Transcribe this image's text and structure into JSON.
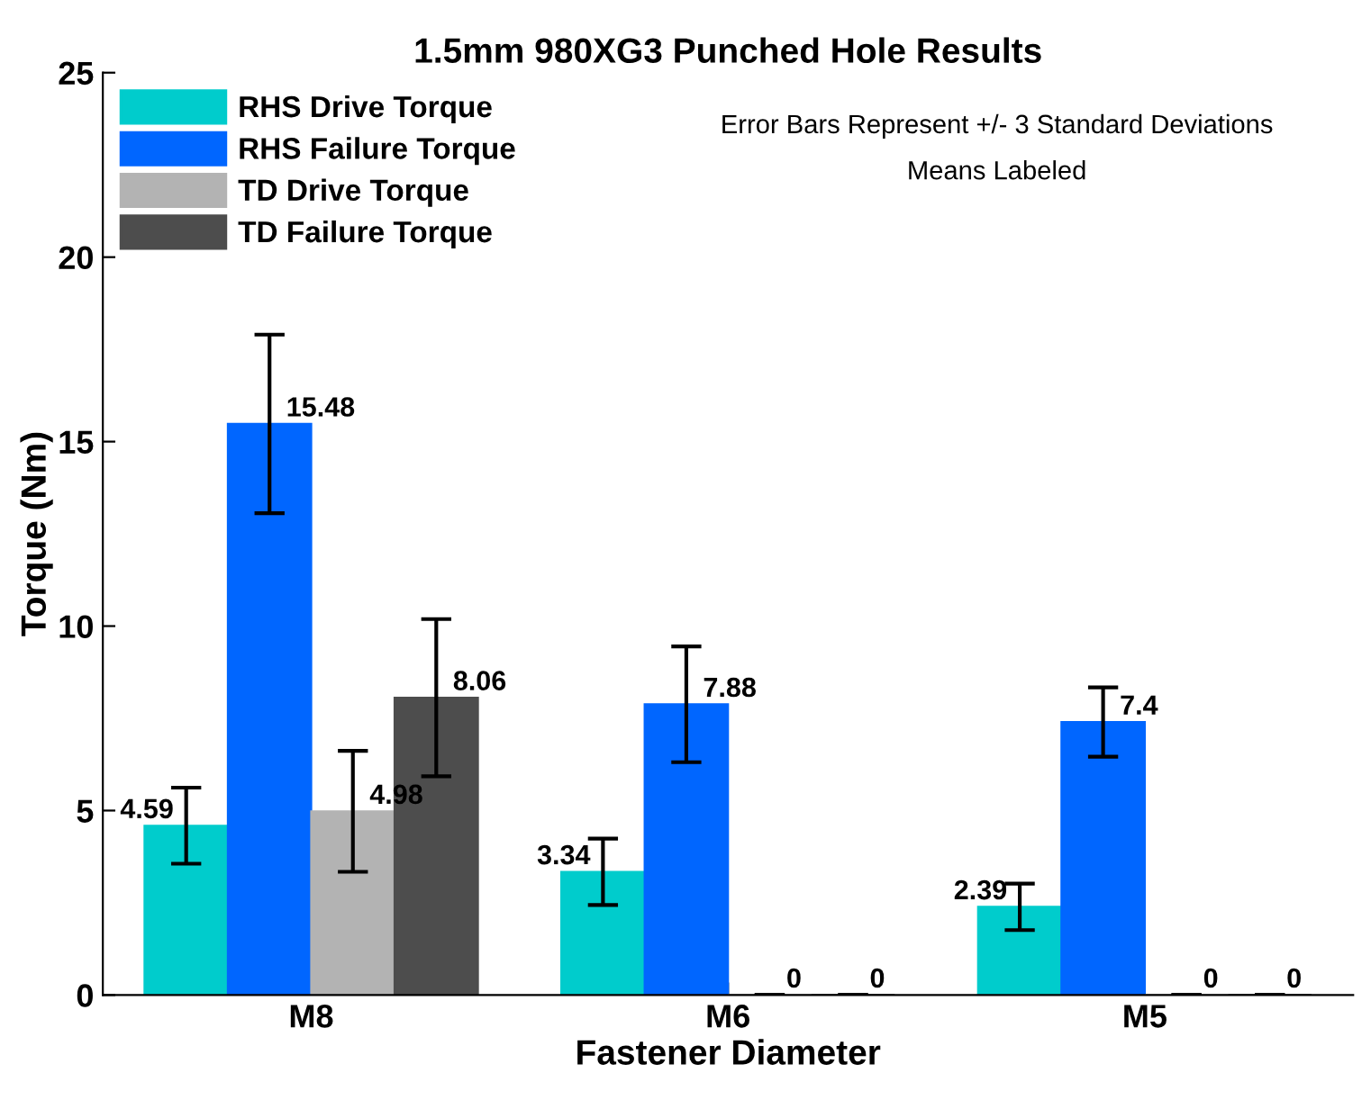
{
  "chart_data": {
    "type": "bar",
    "title": "1.5mm 980XG3 Punched Hole Results",
    "xlabel": "Fastener Diameter",
    "ylabel": "Torque (Nm)",
    "annotations": [
      "Error Bars Represent +/- 3 Standard Deviations",
      "Means Labeled"
    ],
    "categories": [
      "M8",
      "M6",
      "M5"
    ],
    "series": [
      {
        "name": "RHS Drive Torque",
        "color": "#00cccc",
        "values": [
          4.59,
          3.34,
          2.39
        ],
        "errors": [
          1.03,
          0.9,
          0.63
        ]
      },
      {
        "name": "RHS Failure Torque",
        "color": "#0066ff",
        "values": [
          15.48,
          7.88,
          7.4
        ],
        "errors": [
          2.42,
          1.57,
          0.94
        ]
      },
      {
        "name": "TD Drive Torque",
        "color": "#b3b3b3",
        "values": [
          4.98,
          0,
          0
        ],
        "errors": [
          1.64,
          0,
          0
        ]
      },
      {
        "name": "TD Failure Torque",
        "color": "#4d4d4d",
        "values": [
          8.06,
          0,
          0
        ],
        "errors": [
          2.13,
          0,
          0
        ]
      }
    ],
    "ylim": [
      0,
      25
    ],
    "yticks": [
      0,
      5,
      10,
      15,
      20,
      25
    ],
    "data_labels": true,
    "legend": "top left",
    "grid": false
  }
}
